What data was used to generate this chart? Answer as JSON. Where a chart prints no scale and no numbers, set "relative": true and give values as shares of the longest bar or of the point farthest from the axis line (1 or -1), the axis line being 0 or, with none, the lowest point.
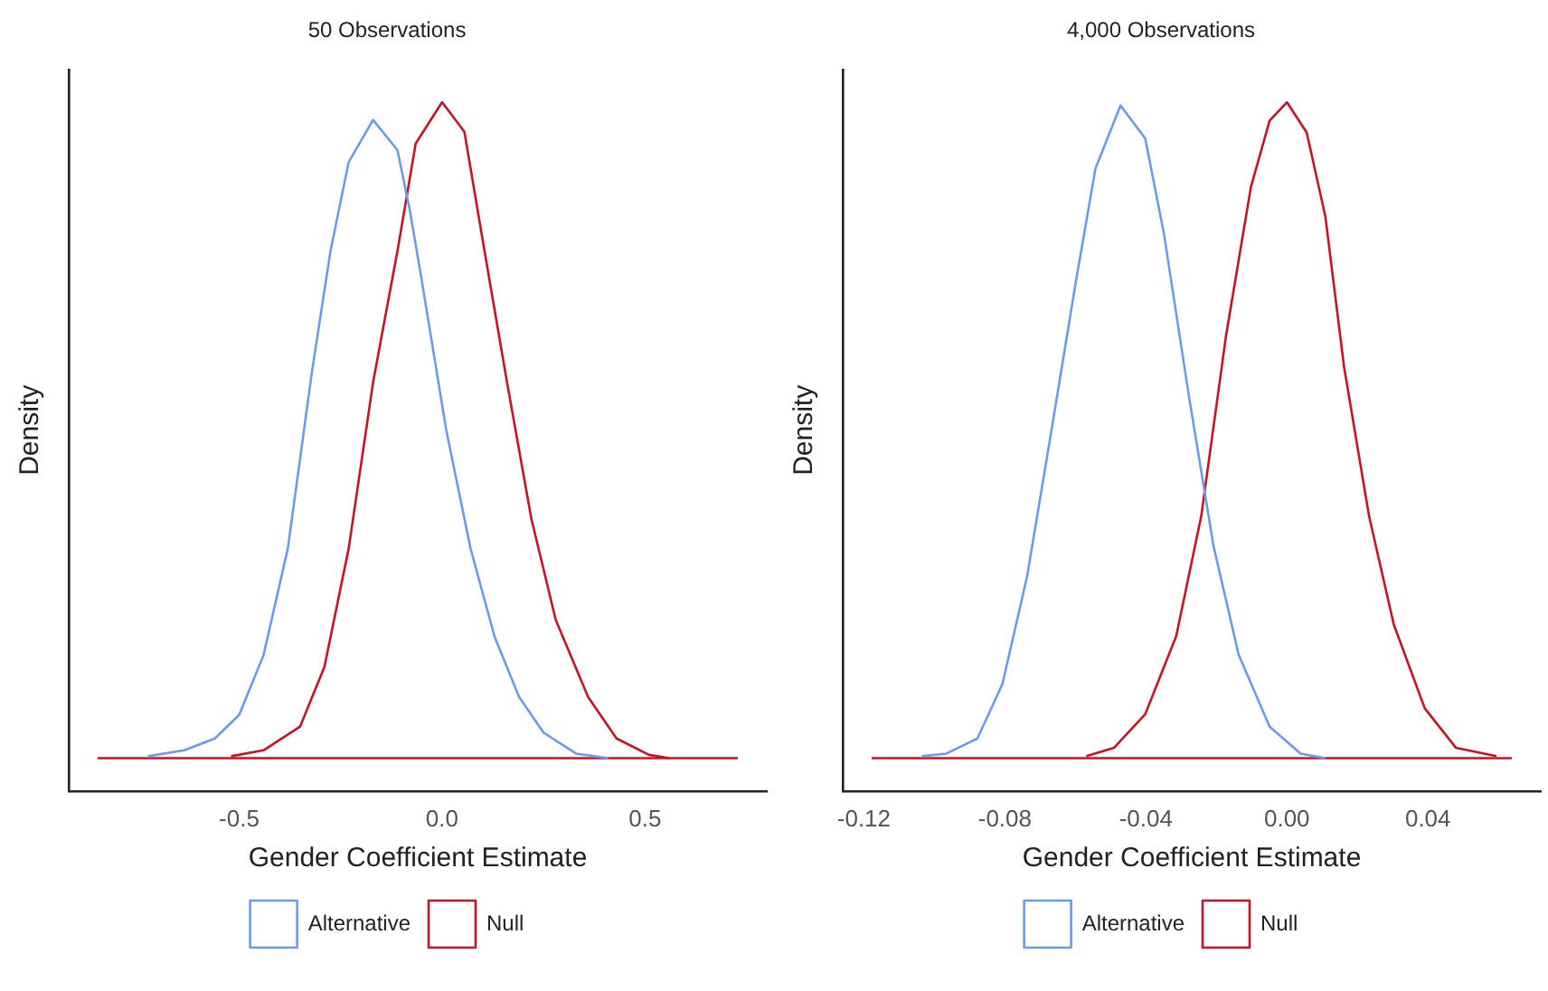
{
  "chart_data": [
    {
      "type": "line",
      "title": "50 Observations",
      "xlabel": "Gender Coefficient Estimate",
      "ylabel": "Density",
      "relative": true,
      "legend": "bottom",
      "marker": "none",
      "xlim": [
        -0.92,
        0.8
      ],
      "xticks": [
        -0.5,
        {
          "value": 0,
          "label": "0.0"
        },
        0.5
      ],
      "ref_lines": [
        {
          "axis": "y",
          "value": 0,
          "color": "#cc1122"
        }
      ],
      "series": [
        {
          "name": "Alternative",
          "color": "#6b9bef",
          "x": [
            -0.725,
            -0.635,
            -0.56,
            -0.5,
            -0.44,
            -0.38,
            -0.32,
            -0.275,
            -0.23,
            -0.17,
            -0.11,
            -0.08,
            -0.05,
            0.01,
            0.07,
            0.13,
            0.19,
            0.25,
            0.33,
            0.41
          ],
          "values": [
            0.003,
            0.012,
            0.03,
            0.066,
            0.157,
            0.32,
            0.592,
            0.773,
            0.909,
            0.973,
            0.927,
            0.837,
            0.728,
            0.501,
            0.32,
            0.184,
            0.093,
            0.039,
            0.007,
            0
          ]
        },
        {
          "name": "Null",
          "color": "#cc1122",
          "x": [
            -0.52,
            -0.44,
            -0.35,
            -0.29,
            -0.23,
            -0.17,
            -0.11,
            -0.065,
            0,
            0.055,
            0.1,
            0.16,
            0.22,
            0.28,
            0.36,
            0.43,
            0.51,
            0.56
          ],
          "values": [
            0.003,
            0.012,
            0.048,
            0.139,
            0.32,
            0.573,
            0.773,
            0.937,
            1,
            0.955,
            0.79,
            0.573,
            0.365,
            0.211,
            0.093,
            0.03,
            0.005,
            0
          ]
        }
      ]
    },
    {
      "type": "line",
      "title": "4,000 Observations",
      "xlabel": "Gender Coefficient Estimate",
      "ylabel": "Density",
      "relative": true,
      "legend": "bottom",
      "marker": "none",
      "xlim": [
        -0.126,
        0.072
      ],
      "xticks": [
        -0.12,
        -0.08,
        -0.04,
        {
          "value": 0,
          "label": "0.00"
        },
        0.04
      ],
      "ref_lines": [
        {
          "axis": "y",
          "value": 0,
          "color": "#cc1122"
        }
      ],
      "series": [
        {
          "name": "Alternative",
          "color": "#6b9bef",
          "x": [
            -0.1036,
            -0.0966,
            -0.0878,
            -0.0807,
            -0.0737,
            -0.0666,
            -0.0596,
            -0.0543,
            -0.0472,
            -0.0402,
            -0.0349,
            -0.0278,
            -0.0208,
            -0.0137,
            -0.0049,
            0.0039,
            0.0109
          ],
          "values": [
            0.003,
            0.007,
            0.03,
            0.113,
            0.277,
            0.506,
            0.735,
            0.899,
            0.995,
            0.945,
            0.8,
            0.552,
            0.323,
            0.158,
            0.048,
            0.007,
            0
          ]
        },
        {
          "name": "Null",
          "color": "#cc1122",
          "x": [
            -0.0569,
            -0.049,
            -0.0402,
            -0.0314,
            -0.0243,
            -0.0173,
            -0.0102,
            -0.0049,
            0,
            0.0056,
            0.0109,
            0.0162,
            0.0233,
            0.0303,
            0.0391,
            0.0479,
            0.0594
          ],
          "values": [
            0.003,
            0.016,
            0.067,
            0.186,
            0.369,
            0.643,
            0.871,
            0.972,
            1,
            0.954,
            0.826,
            0.597,
            0.369,
            0.204,
            0.076,
            0.016,
            0.003
          ]
        }
      ]
    }
  ]
}
